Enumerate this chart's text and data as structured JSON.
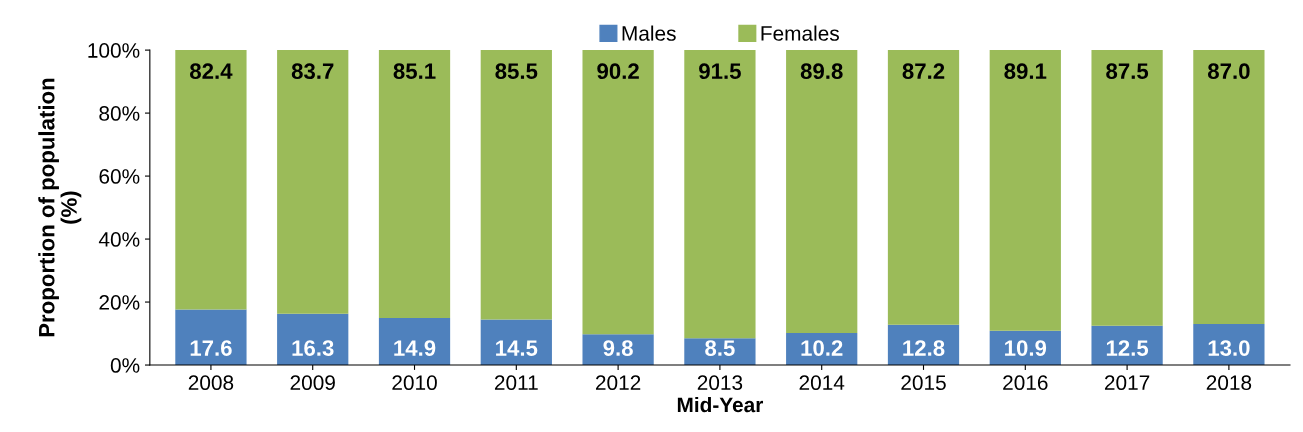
{
  "chart_data": {
    "type": "bar",
    "stacked": true,
    "xlabel": "Mid-Year",
    "ylabel": "Proportion of population\n(%)",
    "categories": [
      "2008",
      "2009",
      "2010",
      "2011",
      "2012",
      "2013",
      "2014",
      "2015",
      "2016",
      "2017",
      "2018"
    ],
    "series": [
      {
        "name": "Males",
        "color": "#4f81bd",
        "values": [
          17.6,
          16.3,
          14.9,
          14.5,
          9.8,
          8.5,
          10.2,
          12.8,
          10.9,
          12.5,
          13.0
        ],
        "value_labels": [
          "17.6",
          "16.3",
          "14.9",
          "14.5",
          "9.8",
          "8.5",
          "10.2",
          "12.8",
          "10.9",
          "12.5",
          "13.0"
        ]
      },
      {
        "name": "Females",
        "color": "#9bbb59",
        "values": [
          82.4,
          83.7,
          85.1,
          85.5,
          90.2,
          91.5,
          89.8,
          87.2,
          89.1,
          87.5,
          87.0
        ],
        "value_labels": [
          "82.4",
          "83.7",
          "85.1",
          "85.5",
          "90.2",
          "91.5",
          "89.8",
          "87.2",
          "89.1",
          "87.5",
          "87.0"
        ]
      }
    ],
    "ylim": [
      0,
      100
    ],
    "yticks": [
      {
        "value": 0,
        "label": "0%"
      },
      {
        "value": 20,
        "label": "20%"
      },
      {
        "value": 40,
        "label": "40%"
      },
      {
        "value": 60,
        "label": "60%"
      },
      {
        "value": 80,
        "label": "80%"
      },
      {
        "value": 100,
        "label": "100%"
      }
    ],
    "grid": false,
    "legend": "top"
  }
}
